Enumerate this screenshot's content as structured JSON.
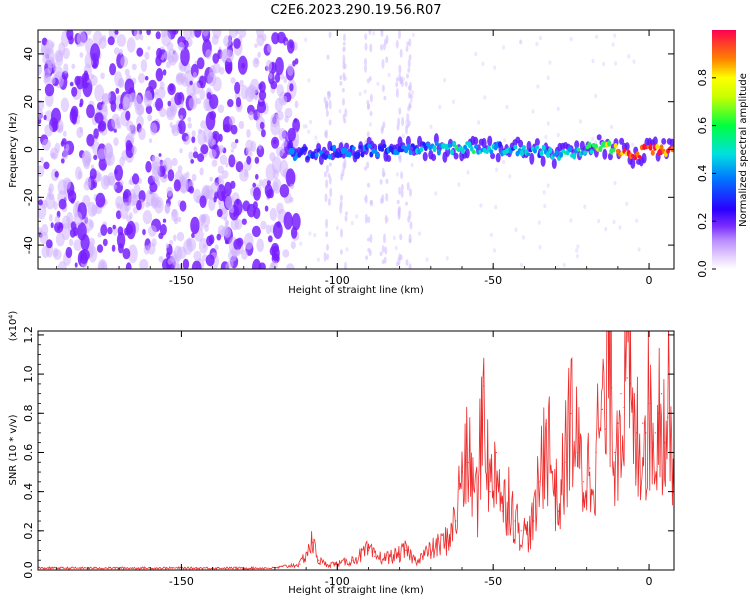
{
  "title": "C2E6.2023.290.19.56.R07",
  "chart_data": [
    {
      "type": "heatmap",
      "title": "C2E6.2023.290.19.56.R07",
      "xlabel": "Height of straight line (km)",
      "ylabel": "Frequency (Hz)",
      "xlim": [
        -196,
        8
      ],
      "ylim": [
        -50,
        50
      ],
      "xticks": [
        -150,
        -100,
        -50,
        0
      ],
      "yticks": [
        -40,
        -20,
        0,
        20,
        40
      ],
      "colorbar": {
        "label": "Normalized spectral amplitude",
        "range": [
          0,
          1
        ],
        "ticks": [
          0.0,
          0.2,
          0.4,
          0.6,
          0.8
        ],
        "colormap": [
          "#ffffff",
          "#e6d2ff",
          "#b98cff",
          "#7a2cff",
          "#2a00ff",
          "#0078ff",
          "#00e0e0",
          "#00ff40",
          "#ffff00",
          "#ff8000",
          "#ff0050"
        ]
      },
      "regions": [
        {
          "description": "noise",
          "x_range": [
            -196,
            -115
          ],
          "freq_range": [
            -50,
            50
          ],
          "amplitude": 0.25
        },
        {
          "description": "signal band",
          "x_range": [
            -115,
            8
          ],
          "freq_range": [
            -8,
            8
          ],
          "amplitude": 0.6
        }
      ],
      "signal_track": {
        "x": [
          -115,
          -100,
          -80,
          -60,
          -40,
          -30,
          -20,
          -15,
          -10,
          -5,
          0,
          8
        ],
        "freq": [
          -2,
          -1,
          0,
          1,
          0,
          -2,
          0,
          2,
          0,
          -2,
          0,
          0
        ],
        "amplitude": [
          0.4,
          0.45,
          0.45,
          0.6,
          0.5,
          0.55,
          0.6,
          0.7,
          0.8,
          1.0,
          0.95,
          0.9
        ]
      }
    },
    {
      "type": "line",
      "xlabel": "Height of straight line (km)",
      "ylabel": "SNR (10 * v/v)",
      "y_multiplier": "(x10⁴)",
      "xlim": [
        -196,
        8
      ],
      "ylim": [
        0,
        1.22
      ],
      "xticks": [
        -150,
        -100,
        -50,
        0
      ],
      "yticks": [
        0.0,
        0.2,
        0.4,
        0.6,
        0.8,
        1.0,
        1.2
      ],
      "color": "#ee2b2b",
      "series": [
        {
          "x": [
            -196,
            -180,
            -160,
            -140,
            -120,
            -112,
            -108,
            -106,
            -104,
            -100,
            -95,
            -90,
            -88,
            -85,
            -80,
            -78,
            -75,
            -70,
            -65,
            -62,
            -60,
            -58,
            -55,
            -53,
            -51,
            -49,
            -47,
            -45,
            -43,
            -41,
            -39,
            -37,
            -35,
            -33,
            -31,
            -29,
            -27,
            -25,
            -23,
            -21,
            -19,
            -17,
            -15,
            -14,
            -13,
            -12,
            -11,
            -10,
            -9,
            -8,
            -7,
            -6,
            -5,
            -4,
            -3,
            -2,
            -1,
            0,
            1,
            2,
            3,
            4,
            5,
            6,
            7,
            8
          ],
          "y": [
            0.01,
            0.01,
            0.01,
            0.01,
            0.01,
            0.03,
            0.14,
            0.05,
            0.03,
            0.03,
            0.05,
            0.1,
            0.07,
            0.06,
            0.08,
            0.1,
            0.05,
            0.1,
            0.15,
            0.25,
            0.5,
            0.55,
            0.35,
            0.94,
            0.4,
            0.6,
            0.3,
            0.4,
            0.25,
            0.2,
            0.18,
            0.25,
            0.45,
            0.75,
            0.5,
            0.3,
            0.55,
            0.8,
            0.6,
            0.45,
            0.52,
            0.6,
            0.82,
            0.72,
            1.22,
            0.93,
            0.6,
            0.75,
            0.9,
            0.83,
            0.98,
            0.95,
            0.62,
            0.7,
            0.6,
            0.75,
            0.7,
            0.85,
            0.65,
            0.7,
            0.8,
            0.9,
            0.65,
            0.78,
            1.0,
            0.35
          ]
        }
      ]
    }
  ]
}
